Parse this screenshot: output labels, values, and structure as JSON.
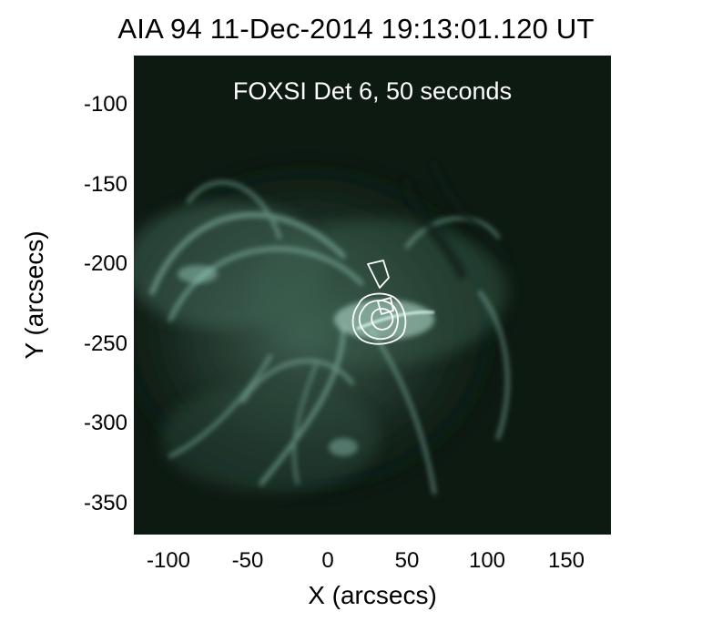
{
  "figure": {
    "title": "AIA 94 11-Dec-2014 19:13:01.120 UT",
    "annotation": "FOXSI Det 6, 50 seconds",
    "x_axis": {
      "label": "X (arcsecs)",
      "range": [
        -125,
        175
      ],
      "ticks": [
        "-100",
        "-50",
        "0",
        "50",
        "100",
        "150"
      ]
    },
    "y_axis": {
      "label": "Y (arcsecs)",
      "range": [
        -375,
        -75
      ],
      "ticks": [
        "-100",
        "-150",
        "-200",
        "-250",
        "-300",
        "-350"
      ]
    },
    "image_colors": {
      "background": "#0d1a12",
      "emission": "#9fd8c8",
      "contours": "#ffffff"
    }
  }
}
